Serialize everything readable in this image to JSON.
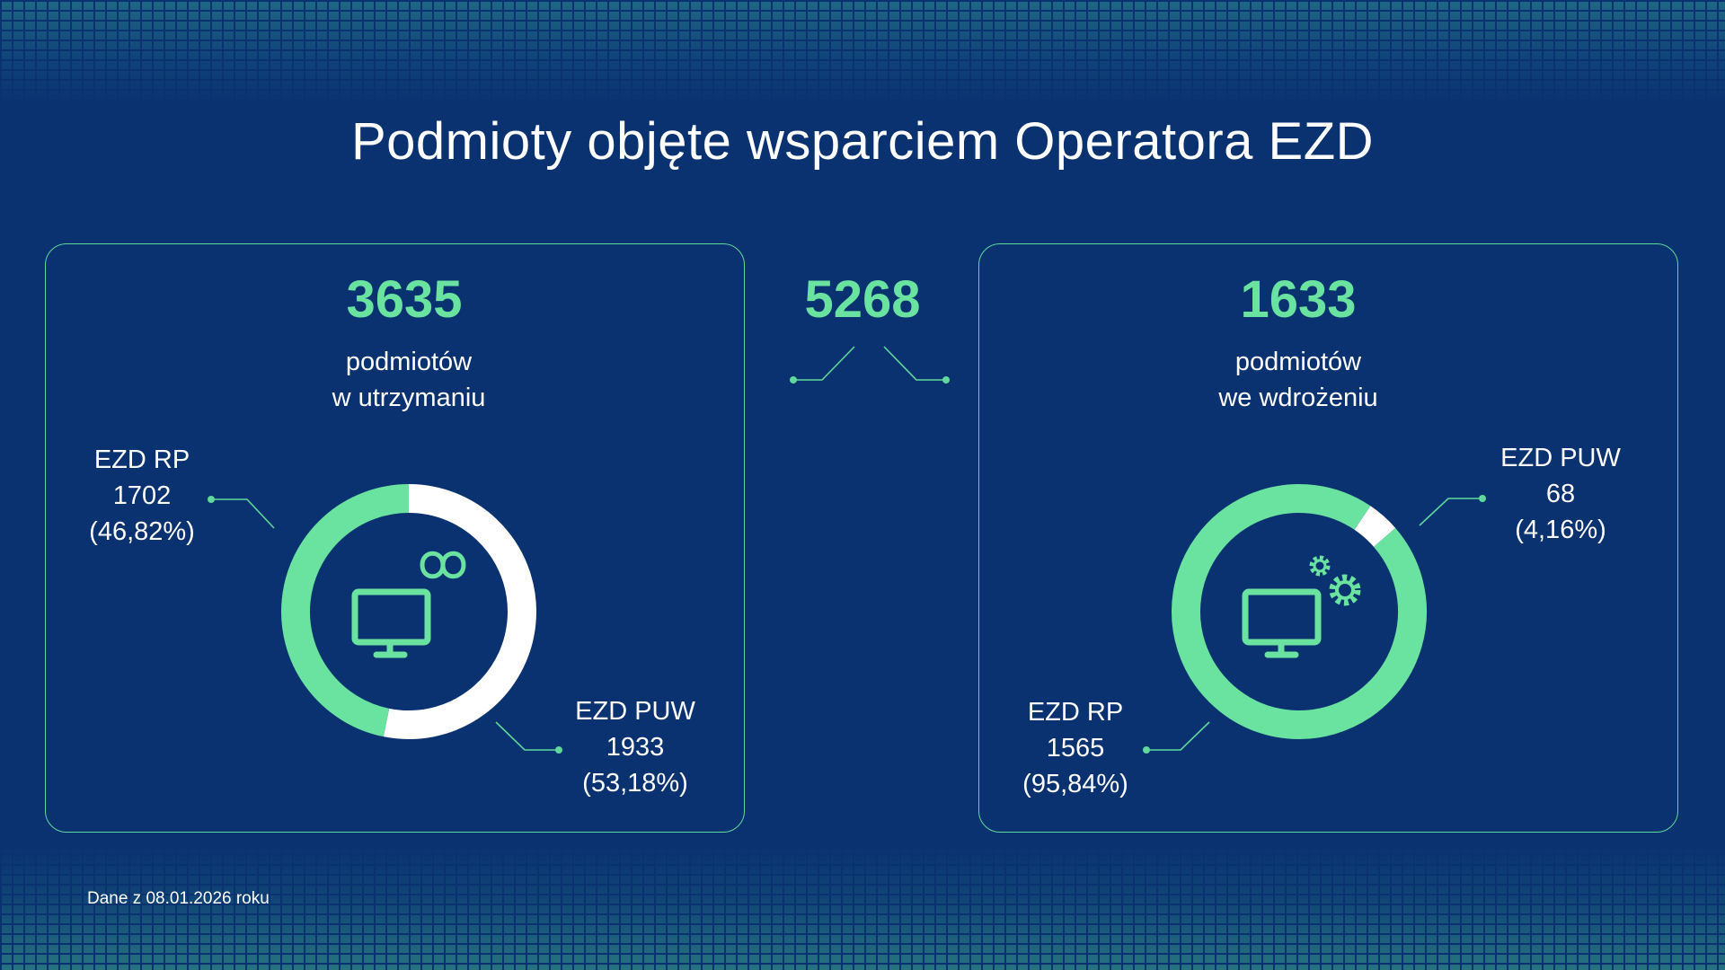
{
  "title": "Podmioty objęte wsparciem Operatora EZD",
  "total": "5268",
  "footnote": "Dane z 08.01.2026 roku",
  "colors": {
    "background": "#0a3170",
    "accent": "#69e39f",
    "ring_secondary": "#ffffff"
  },
  "panels": [
    {
      "number": "3635",
      "subtitle_line1": "podmiotów",
      "subtitle_line2": "w utrzymaniu",
      "icon": "monitor-infinity-icon",
      "segments": [
        {
          "name": "EZD RP",
          "value": "1702",
          "percent": "(46,82%)"
        },
        {
          "name": "EZD PUW",
          "value": "1933",
          "percent": "(53,18%)"
        }
      ]
    },
    {
      "number": "1633",
      "subtitle_line1": "podmiotów",
      "subtitle_line2": "we wdrożeniu",
      "icon": "monitor-gears-icon",
      "segments": [
        {
          "name": "EZD RP",
          "value": "1565",
          "percent": "(95,84%)"
        },
        {
          "name": "EZD PUW",
          "value": "68",
          "percent": "(4,16%)"
        }
      ]
    }
  ],
  "chart_data": [
    {
      "type": "pie",
      "categories": [
        "EZD RP",
        "EZD PUW"
      ],
      "values": [
        1702,
        1933
      ],
      "percentages": [
        46.82,
        53.18
      ],
      "title": "3635"
    },
    {
      "type": "pie",
      "categories": [
        "EZD RP",
        "EZD PUW"
      ],
      "values": [
        1565,
        68
      ],
      "percentages": [
        95.84,
        4.16
      ],
      "title": "1633"
    }
  ]
}
